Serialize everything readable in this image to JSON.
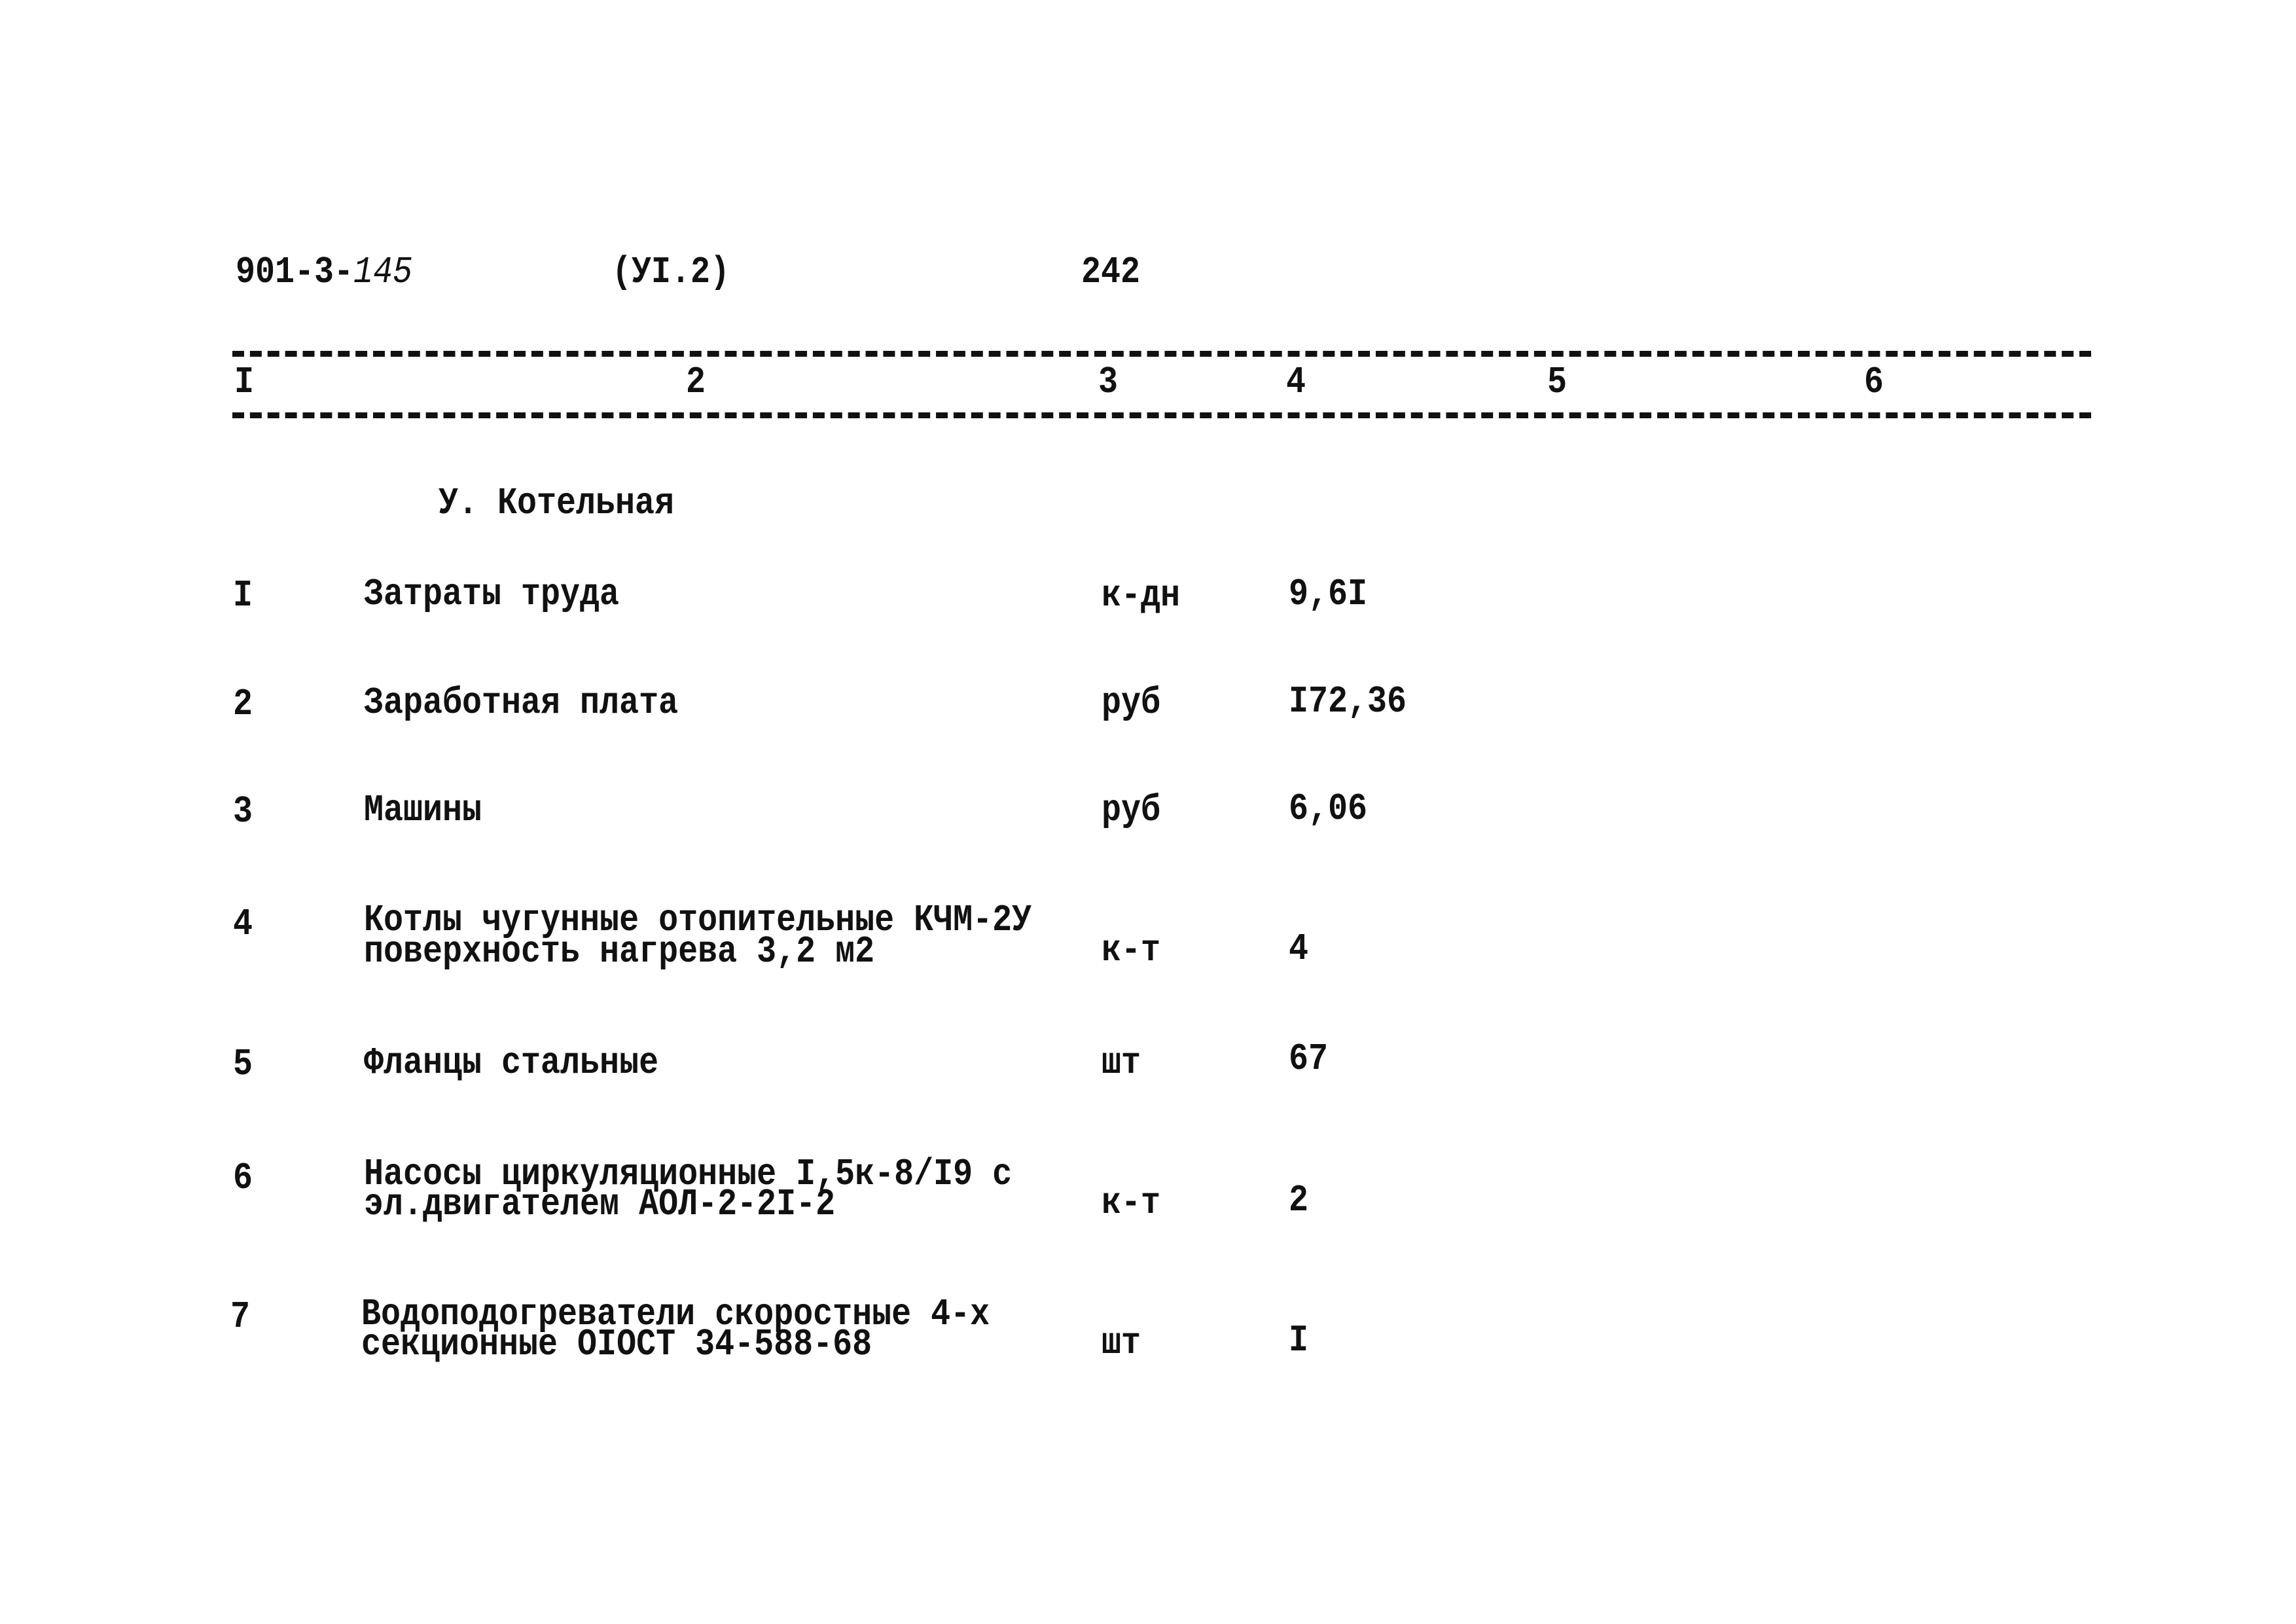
{
  "header": {
    "doc_code": "901-3-",
    "doc_code_handwritten": "145",
    "section_ref": "(УI.2)",
    "page_number": "242"
  },
  "column_numbers": [
    "I",
    "2",
    "3",
    "4",
    "5",
    "6"
  ],
  "section_title": "У. Котельная",
  "rows": [
    {
      "num": "I",
      "description": [
        "Затраты труда"
      ],
      "unit": "к-дн",
      "value": "9,6I"
    },
    {
      "num": "2",
      "description": [
        "Заработная плата"
      ],
      "unit": "руб",
      "value": "I72,36"
    },
    {
      "num": "3",
      "description": [
        "Машины"
      ],
      "unit": "руб",
      "value": "6,06"
    },
    {
      "num": "4",
      "description": [
        "Котлы чугунные отопительные КЧМ-2У",
        "поверхность нагрева 3,2 м2"
      ],
      "unit": "к-т",
      "value": "4"
    },
    {
      "num": "5",
      "description": [
        "Фланцы стальные"
      ],
      "unit": "шт",
      "value": "67"
    },
    {
      "num": "6",
      "description": [
        "Насосы циркуляционные I,5к-8/I9 с",
        "эл.двигателем АОЛ-2-2I-2"
      ],
      "unit": "к-т",
      "value": "2"
    },
    {
      "num": "7",
      "description": [
        "Водоподогреватели скоростные 4-х",
        "секционные ОIОСТ 34-588-68"
      ],
      "unit": "шт",
      "value": "I"
    }
  ]
}
